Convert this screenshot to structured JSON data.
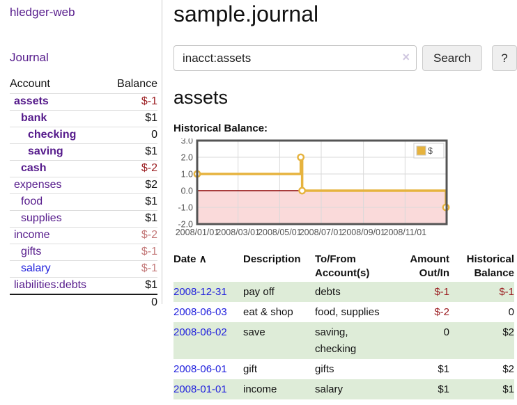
{
  "app": {
    "brand": "hledger-web"
  },
  "colors": {
    "purple": "#551a8b",
    "blue": "#2222dd",
    "negative_red": "#9a1b1f",
    "rose_red": "#c47a7a",
    "stripe_green": "#deecd8",
    "chart_yellow": "#e6b33e"
  },
  "sidebar": {
    "journal_label": "Journal",
    "accounts": {
      "header_account": "Account",
      "header_balance": "Balance",
      "rows": [
        {
          "name": "assets",
          "indent": 1,
          "bold": true,
          "link": "purple",
          "balance": "$-1",
          "tone": "neg"
        },
        {
          "name": "bank",
          "indent": 2,
          "bold": true,
          "link": "purple",
          "balance": "$1",
          "tone": "normal"
        },
        {
          "name": "checking",
          "indent": 3,
          "bold": true,
          "link": "purple",
          "balance": "0",
          "tone": "normal"
        },
        {
          "name": "saving",
          "indent": 3,
          "bold": true,
          "link": "purple",
          "balance": "$1",
          "tone": "normal"
        },
        {
          "name": "cash",
          "indent": 2,
          "bold": true,
          "link": "purple",
          "balance": "$-2",
          "tone": "neg"
        },
        {
          "name": "expenses",
          "indent": 1,
          "bold": false,
          "link": "purple",
          "balance": "$2",
          "tone": "normal"
        },
        {
          "name": "food",
          "indent": 2,
          "bold": false,
          "link": "purple",
          "balance": "$1",
          "tone": "normal"
        },
        {
          "name": "supplies",
          "indent": 2,
          "bold": false,
          "link": "purple",
          "balance": "$1",
          "tone": "normal"
        },
        {
          "name": "income",
          "indent": 1,
          "bold": false,
          "link": "purple",
          "balance": "$-2",
          "tone": "rose"
        },
        {
          "name": "gifts",
          "indent": 2,
          "bold": false,
          "link": "purple",
          "balance": "$-1",
          "tone": "rose"
        },
        {
          "name": "salary",
          "indent": 2,
          "bold": false,
          "link": "blue",
          "balance": "$-1",
          "tone": "rose"
        },
        {
          "name": "liabilities:debts",
          "indent": 1,
          "bold": false,
          "link": "purple",
          "balance": "$1",
          "tone": "normal"
        }
      ],
      "total": "0"
    }
  },
  "header": {
    "title": "sample.journal"
  },
  "search": {
    "value": "inacct:assets",
    "clear_icon": "×",
    "button_label": "Search",
    "help_label": "?"
  },
  "account_page": {
    "heading": "assets",
    "chart_label": "Historical Balance:"
  },
  "chart_data": {
    "type": "line",
    "style": "step",
    "title": "Historical Balance",
    "legend_label": "$",
    "ylim": [
      -2.0,
      3.0
    ],
    "yticks": [
      3.0,
      2.0,
      1.0,
      0.0,
      -1.0,
      -2.0
    ],
    "x_max_day": 366,
    "xticks": [
      {
        "label": "2008/01/01",
        "day": 0
      },
      {
        "label": "2008/03/01",
        "day": 60
      },
      {
        "label": "2008/05/01",
        "day": 121
      },
      {
        "label": "2008/07/01",
        "day": 182
      },
      {
        "label": "2008/09/01",
        "day": 244
      },
      {
        "label": "2008/11/01",
        "day": 305
      }
    ],
    "series": [
      {
        "name": "$",
        "color": "#e6b33e",
        "points": [
          {
            "date": "2008-01-01",
            "day": 0,
            "value": 1.0
          },
          {
            "date": "2008-06-01",
            "day": 152,
            "value": 2.0
          },
          {
            "date": "2008-06-03",
            "day": 154,
            "value": 0.0
          },
          {
            "date": "2008-12-31",
            "day": 365,
            "value": -1.0
          }
        ]
      }
    ],
    "grid_color": "#d9d9d9",
    "border_color": "#545454",
    "zero_line_color": "#8b0000",
    "negative_fill": "#fadada",
    "marker_fill": "#ffffff"
  },
  "register": {
    "headers": {
      "date": "Date",
      "sort_icon": "∧",
      "description": "Description",
      "tofrom_1": "To/From",
      "tofrom_2": "Account(s)",
      "amount_1": "Amount",
      "amount_2": "Out/In",
      "balance_1": "Historical",
      "balance_2": "Balance"
    },
    "rows": [
      {
        "date": "2008-12-31",
        "description": "pay off",
        "accounts": "debts",
        "amount": "$-1",
        "amount_tone": "neg",
        "balance": "$-1",
        "balance_tone": "neg",
        "shaded": true
      },
      {
        "date": "2008-06-03",
        "description": "eat & shop",
        "accounts": "food, supplies",
        "amount": "$-2",
        "amount_tone": "neg",
        "balance": "0",
        "balance_tone": "normal",
        "shaded": false
      },
      {
        "date": "2008-06-02",
        "description": "save",
        "accounts": "saving, checking",
        "amount": "0",
        "amount_tone": "normal",
        "balance": "$2",
        "balance_tone": "normal",
        "shaded": true
      },
      {
        "date": "2008-06-01",
        "description": "gift",
        "accounts": "gifts",
        "amount": "$1",
        "amount_tone": "normal",
        "balance": "$2",
        "balance_tone": "normal",
        "shaded": false
      },
      {
        "date": "2008-01-01",
        "description": "income",
        "accounts": "salary",
        "amount": "$1",
        "amount_tone": "normal",
        "balance": "$1",
        "balance_tone": "normal",
        "shaded": true
      }
    ]
  }
}
